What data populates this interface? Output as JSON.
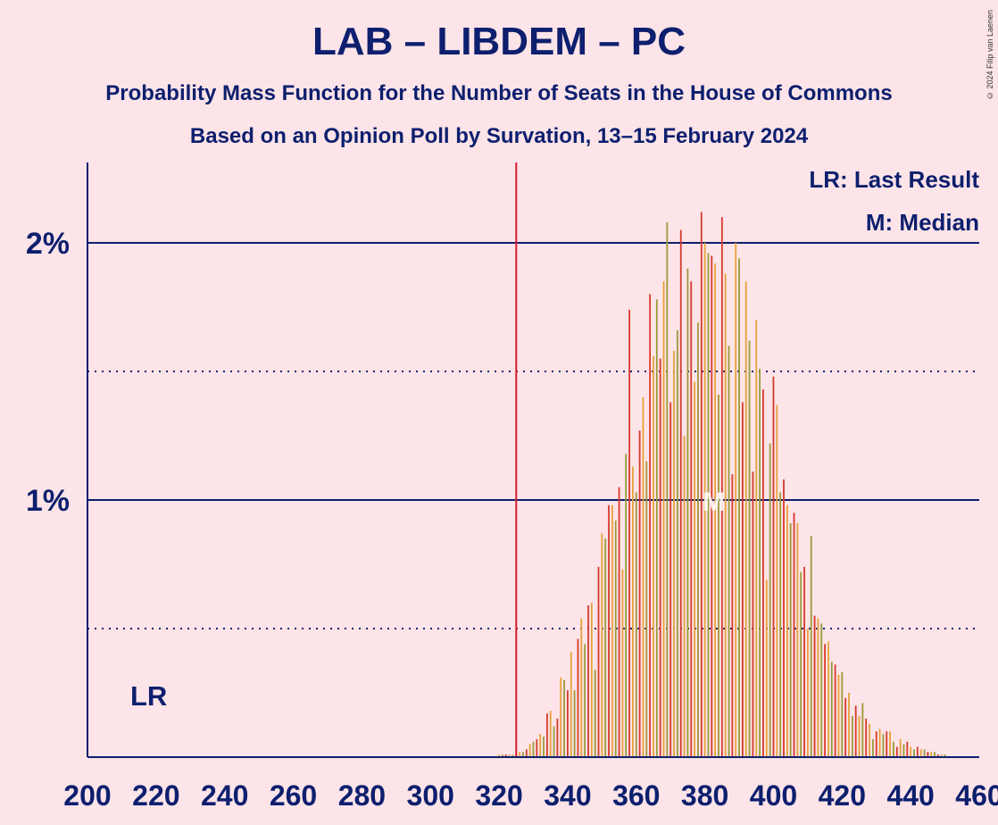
{
  "title": "LAB – LIBDEM – PC",
  "subtitle": "Probability Mass Function for the Number of Seats in the House of Commons",
  "subtitle2": "Based on an Opinion Poll by Survation, 13–15 February 2024",
  "copyright": "© 2024 Filip van Laenen",
  "legend": {
    "last_result": "LR: Last Result",
    "median": "M: Median"
  },
  "markers": {
    "lr_label": "LR",
    "median_label": "M"
  },
  "colors": {
    "background": "#fde4e8",
    "axis": "#0d1f6e",
    "lr_line": "#d42030",
    "bar_colors": [
      "#e8a13a",
      "#9a9a3a",
      "#d63a2c"
    ]
  },
  "chart_data": {
    "type": "bar",
    "title": "LAB – LIBDEM – PC",
    "xlim": [
      200,
      460
    ],
    "ylim": [
      0,
      2.3
    ],
    "x_ticks": [
      200,
      220,
      240,
      260,
      280,
      300,
      320,
      340,
      360,
      380,
      400,
      420,
      440,
      460
    ],
    "x_tick_labels": [
      "200",
      "220",
      "240",
      "260",
      "280",
      "300",
      "320",
      "340",
      "360",
      "380",
      "400",
      "420",
      "440",
      "460"
    ],
    "y_ticks": [
      1,
      2
    ],
    "y_tick_labels": [
      "1%",
      "2%"
    ],
    "y_minor_gridlines": [
      0.5,
      1.5
    ],
    "last_result_seats": 325,
    "median_seats": 380,
    "legend_position": "top-right",
    "series_colors_cycle": [
      "orange",
      "olive",
      "red"
    ],
    "x": [
      320,
      321,
      322,
      323,
      324,
      325,
      326,
      327,
      328,
      329,
      330,
      331,
      332,
      333,
      334,
      335,
      336,
      337,
      338,
      339,
      340,
      341,
      342,
      343,
      344,
      345,
      346,
      347,
      348,
      349,
      350,
      351,
      352,
      353,
      354,
      355,
      356,
      357,
      358,
      359,
      360,
      361,
      362,
      363,
      364,
      365,
      366,
      367,
      368,
      369,
      370,
      371,
      372,
      373,
      374,
      375,
      376,
      377,
      378,
      379,
      380,
      381,
      382,
      383,
      384,
      385,
      386,
      387,
      388,
      389,
      390,
      391,
      392,
      393,
      394,
      395,
      396,
      397,
      398,
      399,
      400,
      401,
      402,
      403,
      404,
      405,
      406,
      407,
      408,
      409,
      410,
      411,
      412,
      413,
      414,
      415,
      416,
      417,
      418,
      419,
      420,
      421,
      422,
      423,
      424,
      425,
      426,
      427,
      428,
      429,
      430,
      431,
      432,
      433,
      434,
      435,
      436,
      437,
      438,
      439,
      440,
      441,
      442,
      443,
      444,
      445,
      446,
      447,
      448,
      449,
      450
    ],
    "values": [
      0.01,
      0.01,
      0.01,
      0.01,
      0.01,
      0.02,
      0.02,
      0.02,
      0.03,
      0.05,
      0.06,
      0.07,
      0.09,
      0.08,
      0.17,
      0.18,
      0.12,
      0.15,
      0.31,
      0.3,
      0.26,
      0.41,
      0.26,
      0.46,
      0.54,
      0.44,
      0.59,
      0.6,
      0.34,
      0.74,
      0.87,
      0.85,
      0.98,
      0.98,
      0.92,
      1.05,
      0.73,
      1.18,
      1.74,
      1.13,
      1.03,
      1.27,
      1.4,
      1.15,
      1.8,
      1.56,
      1.78,
      1.55,
      1.85,
      2.08,
      1.38,
      1.58,
      1.66,
      2.05,
      1.25,
      1.9,
      1.85,
      1.46,
      1.69,
      2.12,
      2.0,
      1.96,
      1.95,
      1.92,
      1.41,
      2.1,
      1.88,
      1.6,
      1.1,
      2.0,
      1.94,
      1.38,
      1.85,
      1.62,
      1.11,
      1.7,
      1.51,
      1.43,
      0.69,
      1.22,
      1.48,
      1.37,
      1.03,
      1.08,
      0.98,
      0.91,
      0.95,
      0.91,
      0.72,
      0.74,
      0.5,
      0.86,
      0.55,
      0.54,
      0.52,
      0.44,
      0.45,
      0.37,
      0.36,
      0.32,
      0.33,
      0.23,
      0.25,
      0.16,
      0.2,
      0.16,
      0.21,
      0.15,
      0.13,
      0.07,
      0.1,
      0.11,
      0.09,
      0.1,
      0.1,
      0.06,
      0.04,
      0.07,
      0.05,
      0.06,
      0.04,
      0.03,
      0.04,
      0.03,
      0.03,
      0.02,
      0.02,
      0.02,
      0.01,
      0.01,
      0.01
    ]
  }
}
